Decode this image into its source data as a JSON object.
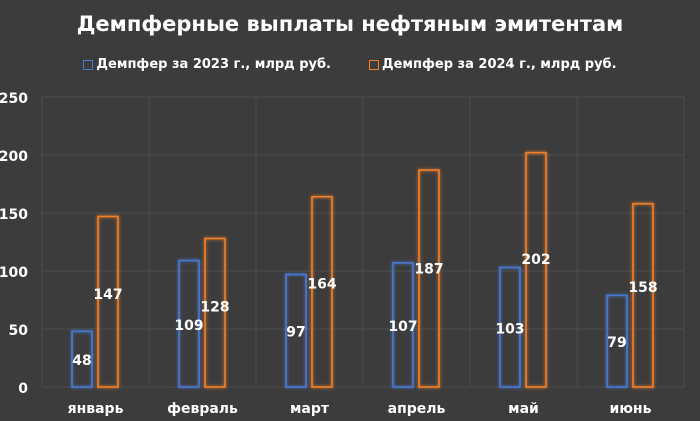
{
  "chart_data": {
    "type": "bar",
    "title": "Демпферные выплаты нефтяным эмитентам",
    "categories": [
      "январь",
      "февраль",
      "март",
      "апрель",
      "май",
      "июнь"
    ],
    "series": [
      {
        "name": "Демпфер за 2023 г., млрд руб.",
        "color": "#4a78d0",
        "values": [
          48,
          109,
          97,
          107,
          103,
          79
        ]
      },
      {
        "name": "Демпфер за 2024 г., млрд руб.",
        "color": "#f07f2a",
        "values": [
          147,
          128,
          164,
          187,
          202,
          158
        ]
      }
    ],
    "ylim": [
      0,
      250
    ],
    "yticks": [
      0,
      50,
      100,
      150,
      200,
      250
    ],
    "xlabel": "",
    "ylabel": "",
    "grid": true,
    "legend": "top-center"
  }
}
